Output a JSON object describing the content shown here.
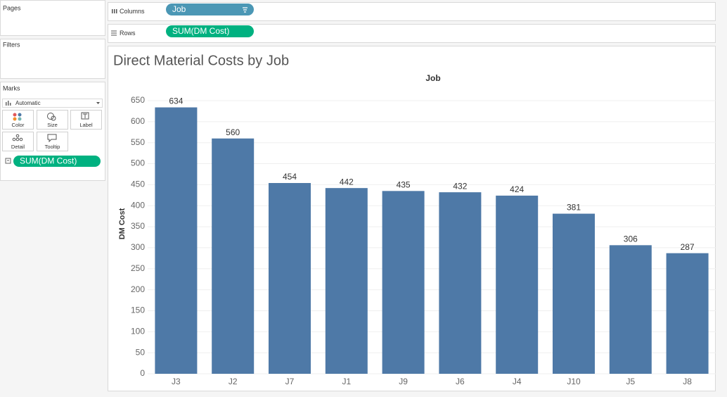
{
  "sidebar": {
    "pages": "Pages",
    "filters": "Filters",
    "marks": "Marks",
    "mark_type": "Automatic",
    "mark_buttons": [
      "Color",
      "Size",
      "Label",
      "Detail",
      "Tooltip"
    ],
    "mark_pill": "SUM(DM Cost)"
  },
  "shelves": {
    "columns_label": "Columns",
    "columns_pill": "Job",
    "rows_label": "Rows",
    "rows_pill": "SUM(DM Cost)"
  },
  "chart_data": {
    "type": "bar",
    "title": "Direct Material Costs by Job",
    "x_axis_title": "Job",
    "y_axis_title": "DM Cost",
    "categories": [
      "J3",
      "J2",
      "J7",
      "J1",
      "J9",
      "J6",
      "J4",
      "J10",
      "J5",
      "J8"
    ],
    "values": [
      634,
      560,
      454,
      442,
      435,
      432,
      424,
      381,
      306,
      287
    ],
    "color": "#4e79a7",
    "ylim": [
      0,
      650
    ],
    "yticks": [
      0,
      50,
      100,
      150,
      200,
      250,
      300,
      350,
      400,
      450,
      500,
      550,
      600,
      650
    ],
    "grid": true
  }
}
